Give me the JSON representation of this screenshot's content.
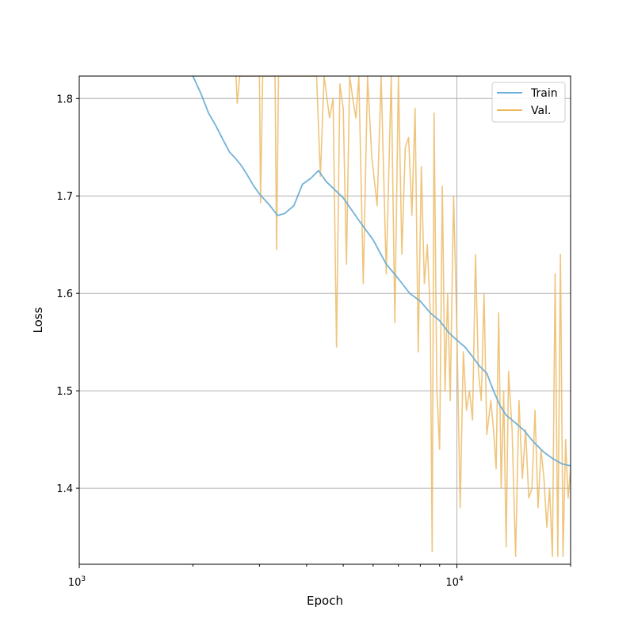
{
  "chart_data": {
    "type": "line",
    "title": "",
    "xlabel": "Epoch",
    "ylabel": "Loss",
    "xscale": "log",
    "xlim": [
      1000,
      20000
    ],
    "ylim": [
      1.322,
      1.823
    ],
    "grid": true,
    "legend": {
      "placement": "top-right"
    },
    "xticks": [
      {
        "value": 1000,
        "base": "10",
        "exp": "3"
      },
      {
        "value": 10000,
        "base": "10",
        "exp": "4"
      }
    ],
    "yticks": [
      {
        "value": 1.4,
        "label": "1.4"
      },
      {
        "value": 1.5,
        "label": "1.5"
      },
      {
        "value": 1.6,
        "label": "1.6"
      },
      {
        "value": 1.7,
        "label": "1.7"
      },
      {
        "value": 1.8,
        "label": "1.8"
      }
    ],
    "series": [
      {
        "name": "Train",
        "color": "#6aaed6",
        "points": [
          [
            2000,
            1.823
          ],
          [
            2100,
            1.805
          ],
          [
            2200,
            1.785
          ],
          [
            2300,
            1.772
          ],
          [
            2400,
            1.758
          ],
          [
            2500,
            1.745
          ],
          [
            2600,
            1.738
          ],
          [
            2700,
            1.73
          ],
          [
            2800,
            1.72
          ],
          [
            2900,
            1.71
          ],
          [
            3000,
            1.702
          ],
          [
            3200,
            1.69
          ],
          [
            3350,
            1.68
          ],
          [
            3500,
            1.682
          ],
          [
            3700,
            1.69
          ],
          [
            3900,
            1.712
          ],
          [
            4100,
            1.718
          ],
          [
            4300,
            1.726
          ],
          [
            4500,
            1.715
          ],
          [
            5000,
            1.698
          ],
          [
            5500,
            1.675
          ],
          [
            6000,
            1.655
          ],
          [
            6500,
            1.63
          ],
          [
            7000,
            1.615
          ],
          [
            7500,
            1.6
          ],
          [
            8000,
            1.592
          ],
          [
            8500,
            1.58
          ],
          [
            9000,
            1.572
          ],
          [
            9500,
            1.56
          ],
          [
            10000,
            1.552
          ],
          [
            10500,
            1.545
          ],
          [
            11000,
            1.535
          ],
          [
            11500,
            1.525
          ],
          [
            12000,
            1.518
          ],
          [
            12500,
            1.5
          ],
          [
            13000,
            1.485
          ],
          [
            13500,
            1.475
          ],
          [
            14000,
            1.47
          ],
          [
            15000,
            1.46
          ],
          [
            16000,
            1.447
          ],
          [
            17000,
            1.437
          ],
          [
            18000,
            1.43
          ],
          [
            19000,
            1.425
          ],
          [
            20000,
            1.423
          ]
        ]
      },
      {
        "name": "Val.",
        "color": "#ebb75c",
        "points": [
          [
            2600,
            1.823
          ],
          [
            2620,
            1.795
          ],
          [
            2660,
            1.823
          ],
          [
            3000,
            1.823
          ],
          [
            3020,
            1.693
          ],
          [
            3060,
            1.823
          ],
          [
            3300,
            1.823
          ],
          [
            3330,
            1.645
          ],
          [
            3370,
            1.823
          ],
          [
            3900,
            1.823
          ],
          [
            4000,
            1.823
          ],
          [
            4100,
            1.823
          ],
          [
            4250,
            1.823
          ],
          [
            4350,
            1.72
          ],
          [
            4450,
            1.823
          ],
          [
            4600,
            1.78
          ],
          [
            4700,
            1.8
          ],
          [
            4800,
            1.545
          ],
          [
            4900,
            1.815
          ],
          [
            5000,
            1.79
          ],
          [
            5100,
            1.63
          ],
          [
            5200,
            1.823
          ],
          [
            5300,
            1.8
          ],
          [
            5400,
            1.78
          ],
          [
            5500,
            1.823
          ],
          [
            5650,
            1.61
          ],
          [
            5800,
            1.823
          ],
          [
            5950,
            1.74
          ],
          [
            6150,
            1.69
          ],
          [
            6300,
            1.823
          ],
          [
            6500,
            1.62
          ],
          [
            6700,
            1.823
          ],
          [
            6850,
            1.57
          ],
          [
            7000,
            1.823
          ],
          [
            7150,
            1.64
          ],
          [
            7300,
            1.75
          ],
          [
            7450,
            1.76
          ],
          [
            7600,
            1.68
          ],
          [
            7750,
            1.79
          ],
          [
            7900,
            1.54
          ],
          [
            8050,
            1.73
          ],
          [
            8200,
            1.61
          ],
          [
            8350,
            1.65
          ],
          [
            8500,
            1.58
          ],
          [
            8600,
            1.335
          ],
          [
            8700,
            1.785
          ],
          [
            8850,
            1.5
          ],
          [
            9000,
            1.44
          ],
          [
            9150,
            1.71
          ],
          [
            9300,
            1.5
          ],
          [
            9450,
            1.6
          ],
          [
            9600,
            1.49
          ],
          [
            9800,
            1.7
          ],
          [
            10000,
            1.56
          ],
          [
            10200,
            1.38
          ],
          [
            10400,
            1.54
          ],
          [
            10600,
            1.48
          ],
          [
            10800,
            1.5
          ],
          [
            11000,
            1.47
          ],
          [
            11200,
            1.64
          ],
          [
            11400,
            1.52
          ],
          [
            11600,
            1.49
          ],
          [
            11800,
            1.6
          ],
          [
            12000,
            1.455
          ],
          [
            12300,
            1.49
          ],
          [
            12500,
            1.46
          ],
          [
            12700,
            1.42
          ],
          [
            12900,
            1.58
          ],
          [
            13100,
            1.4
          ],
          [
            13300,
            1.5
          ],
          [
            13500,
            1.34
          ],
          [
            13700,
            1.52
          ],
          [
            14000,
            1.46
          ],
          [
            14300,
            1.33
          ],
          [
            14600,
            1.49
          ],
          [
            14900,
            1.41
          ],
          [
            15200,
            1.46
          ],
          [
            15500,
            1.39
          ],
          [
            15800,
            1.4
          ],
          [
            16100,
            1.48
          ],
          [
            16400,
            1.38
          ],
          [
            16700,
            1.44
          ],
          [
            17000,
            1.41
          ],
          [
            17300,
            1.36
          ],
          [
            17600,
            1.4
          ],
          [
            17900,
            1.33
          ],
          [
            18200,
            1.62
          ],
          [
            18500,
            1.33
          ],
          [
            18800,
            1.64
          ],
          [
            19100,
            1.33
          ],
          [
            19400,
            1.45
          ],
          [
            19700,
            1.39
          ],
          [
            20000,
            1.42
          ]
        ]
      }
    ]
  }
}
